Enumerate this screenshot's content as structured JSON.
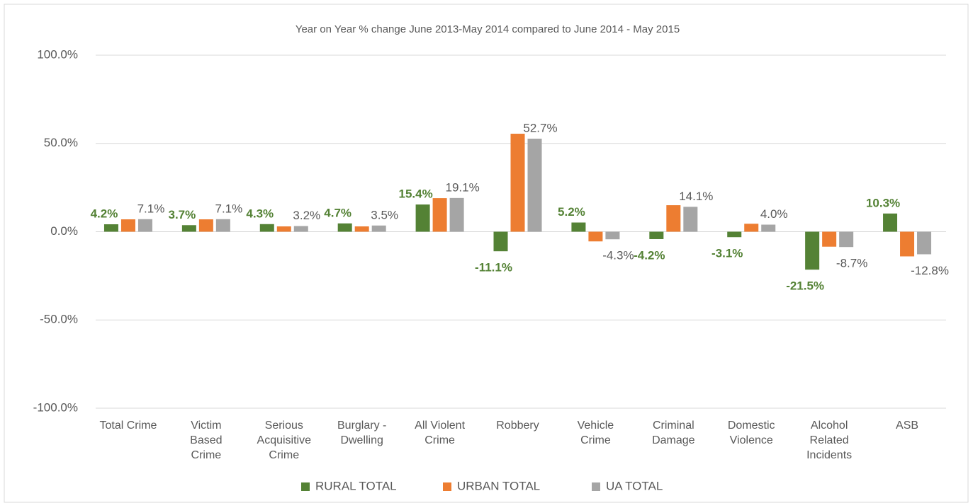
{
  "chart_data": {
    "type": "bar",
    "title": "Year on Year % change June 2013-May 2014 compared to June 2014 - May 2015",
    "categories": [
      "Total Crime",
      "Victim Based Crime",
      "Serious Acquisitive Crime",
      "Burglary - Dwelling",
      "All Violent Crime",
      "Robbery",
      "Vehicle Crime",
      "Criminal Damage",
      "Domestic Violence",
      "Alcohol Related Incidents",
      "ASB"
    ],
    "series": [
      {
        "name": "RURAL TOTAL",
        "color": "#548235",
        "values": [
          4.2,
          3.7,
          4.3,
          4.7,
          15.4,
          -11.1,
          5.2,
          -4.2,
          -3.1,
          -21.5,
          10.3
        ],
        "value_labels": [
          "4.2%",
          "3.7%",
          "4.3%",
          "4.7%",
          "15.4%",
          "-11.1%",
          "5.2%",
          "-4.2%",
          "-3.1%",
          "-21.5%",
          "10.3%"
        ]
      },
      {
        "name": "URBAN TOTAL",
        "color": "#ed7d31",
        "values": [
          7.0,
          7.0,
          3.0,
          3.0,
          19.0,
          55.5,
          -5.5,
          15.0,
          4.5,
          -8.5,
          -14.0
        ]
      },
      {
        "name": "UA TOTAL",
        "color": "#a5a5a5",
        "values": [
          7.1,
          7.1,
          3.2,
          3.5,
          19.1,
          52.7,
          -4.3,
          14.1,
          4.0,
          -8.7,
          -12.8
        ],
        "value_labels": [
          "7.1%",
          "7.1%",
          "3.2%",
          "3.5%",
          "19.1%",
          "52.7%",
          "-4.3%",
          "14.1%",
          "4.0%",
          "-8.7%",
          "-12.8%"
        ]
      }
    ],
    "ylim": [
      -100,
      100
    ],
    "yticks": [
      {
        "value": -100,
        "label": "-100.0%"
      },
      {
        "value": -50,
        "label": "-50.0%"
      },
      {
        "value": 0,
        "label": "0.0%"
      },
      {
        "value": 50,
        "label": "50.0%"
      },
      {
        "value": 100,
        "label": "100.0%"
      }
    ],
    "grid": true,
    "legend": "bottom"
  }
}
